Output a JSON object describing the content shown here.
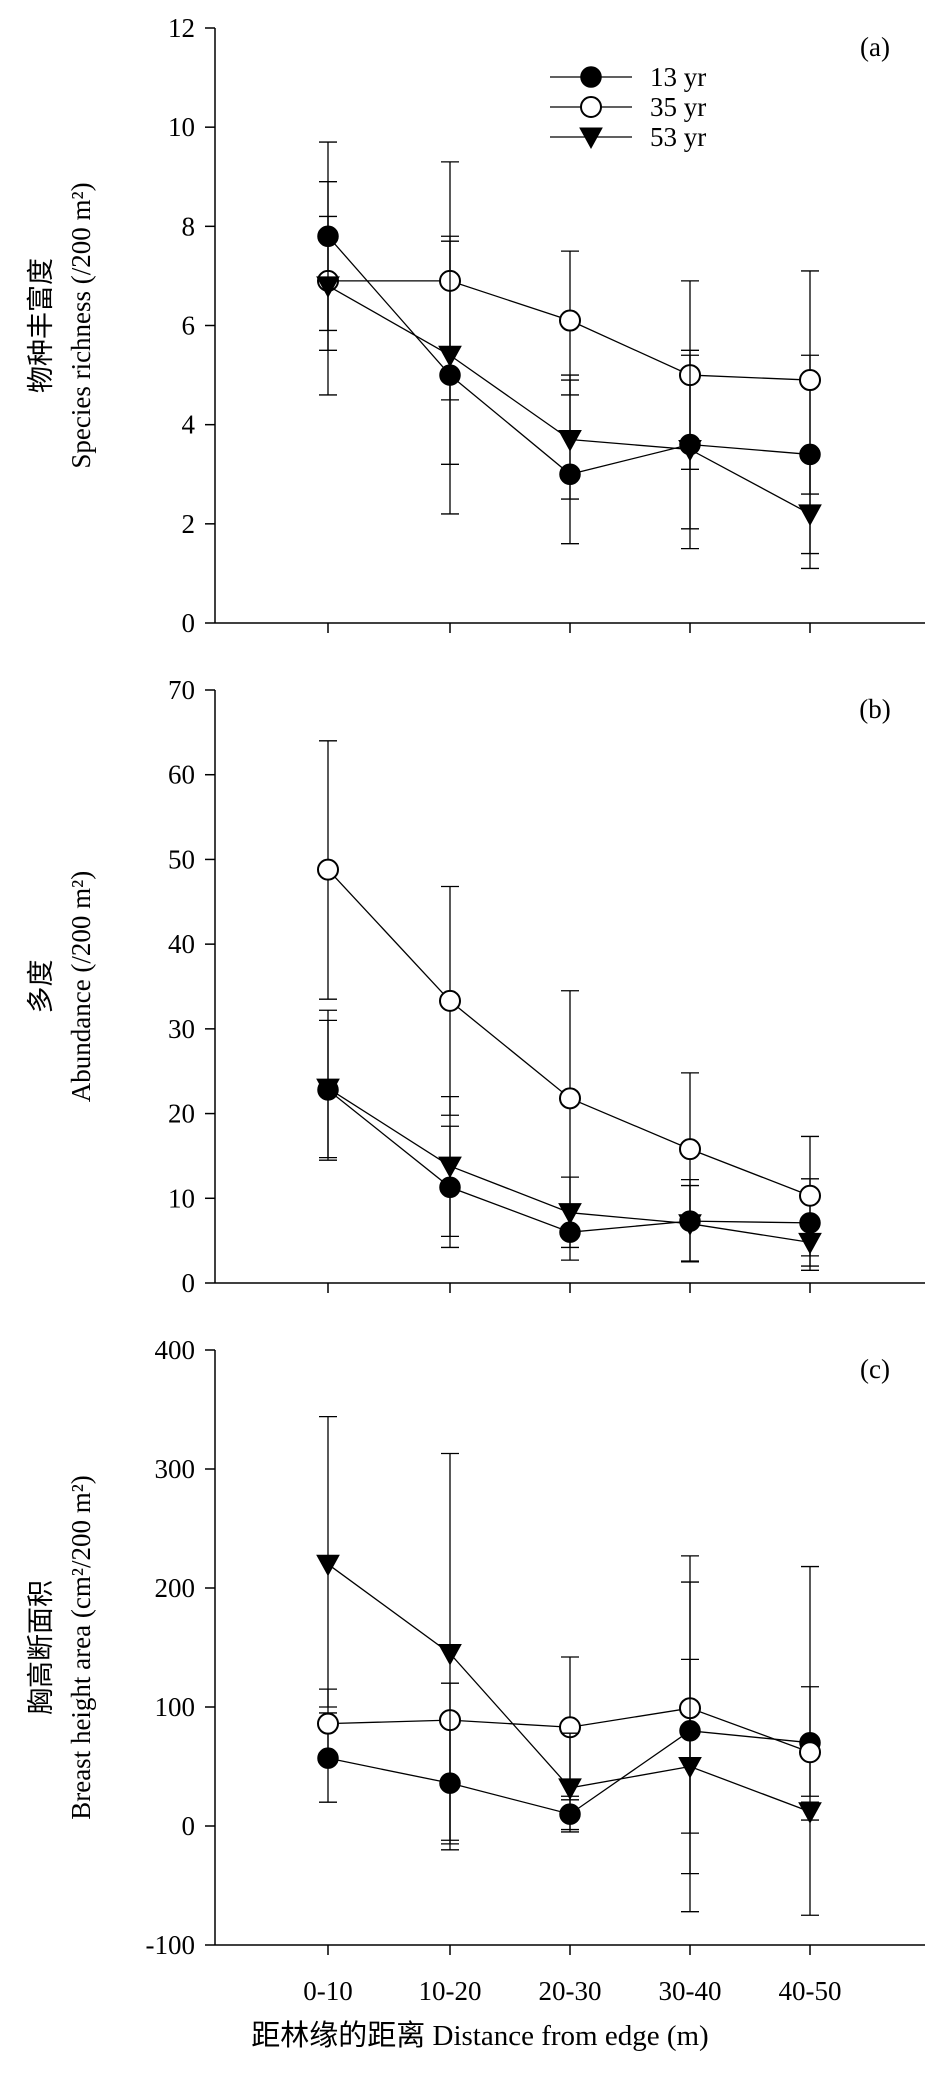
{
  "chart_data": {
    "type": "line",
    "categories": [
      "0-10",
      "10-20",
      "20-30",
      "30-40",
      "40-50"
    ],
    "xlabel": "距林缘的距离  Distance from edge (m)",
    "legend": {
      "placement": "top-center",
      "entries": [
        {
          "label": "13 yr",
          "marker": "filled-circle"
        },
        {
          "label": "35 yr",
          "marker": "open-circle"
        },
        {
          "label": "53 yr",
          "marker": "filled-triangle-down"
        }
      ]
    },
    "panels": [
      {
        "panel_label": "(a)",
        "ylabel_cn": "物种丰富度",
        "ylabel": "Species richness (/200 m²)",
        "ylim": [
          0,
          12
        ],
        "yticks": [
          0,
          2,
          4,
          6,
          8,
          10,
          12
        ],
        "series": [
          {
            "name": "13 yr",
            "values": [
              7.8,
              5.0,
              3.0,
              3.6,
              3.4
            ],
            "err_upper": [
              9.7,
              7.7,
              4.9,
              5.4,
              5.4
            ],
            "err_lower": [
              5.9,
              2.2,
              1.6,
              1.9,
              1.4
            ]
          },
          {
            "name": "35 yr",
            "values": [
              6.9,
              6.9,
              6.1,
              5.0,
              4.9
            ],
            "err_upper": [
              8.9,
              9.3,
              7.5,
              6.9,
              7.1
            ],
            "err_lower": [
              4.6,
              4.5,
              4.6,
              3.1,
              2.6
            ]
          },
          {
            "name": "53 yr",
            "values": [
              6.8,
              5.4,
              3.7,
              3.5,
              2.2
            ],
            "err_upper": [
              8.2,
              7.8,
              5.0,
              5.5,
              3.3
            ],
            "err_lower": [
              5.5,
              3.2,
              2.5,
              1.5,
              1.1
            ]
          }
        ]
      },
      {
        "panel_label": "(b)",
        "ylabel_cn": "多度",
        "ylabel": "Abundance (/200 m²)",
        "ylim": [
          0,
          70
        ],
        "yticks": [
          0,
          10,
          20,
          30,
          40,
          50,
          60,
          70
        ],
        "series": [
          {
            "name": "13 yr",
            "values": [
              22.8,
              11.3,
              6.0,
              7.3,
              7.1
            ],
            "err_upper": [
              31.0,
              18.5,
              9.2,
              12.2,
              12.3
            ],
            "err_lower": [
              14.5,
              4.2,
              2.7,
              2.5,
              2.0
            ]
          },
          {
            "name": "35 yr",
            "values": [
              48.8,
              33.3,
              21.8,
              15.8,
              10.3
            ],
            "err_upper": [
              64.0,
              46.8,
              34.5,
              24.8,
              17.3
            ],
            "err_lower": [
              33.5,
              19.8,
              9.1,
              6.8,
              3.2
            ]
          },
          {
            "name": "53 yr",
            "values": [
              23.0,
              13.8,
              8.3,
              7.0,
              4.8
            ],
            "err_upper": [
              32.2,
              22.0,
              12.5,
              11.5,
              7.0
            ],
            "err_lower": [
              14.8,
              5.5,
              4.2,
              2.6,
              1.5
            ]
          }
        ]
      },
      {
        "panel_label": "(c)",
        "ylabel_cn": "胸高断面积",
        "ylabel": "Breast height area (cm²/200 m²)",
        "ylim": [
          -100,
          400
        ],
        "yticks": [
          -100,
          0,
          100,
          200,
          300,
          400
        ],
        "series": [
          {
            "name": "13 yr",
            "values": [
              57,
              36,
              10,
              80,
              70
            ],
            "err_upper": [
              95,
              88,
              25,
              205,
              117
            ],
            "err_lower": [
              20,
              -15,
              -5,
              -40,
              25
            ]
          },
          {
            "name": "35 yr",
            "values": [
              86,
              89,
              83,
              99,
              62
            ],
            "err_upper": [
              115,
              120,
              142,
              227,
              218
            ],
            "err_lower": [
              56,
              -12,
              22,
              -6,
              -75
            ]
          },
          {
            "name": "53 yr",
            "values": [
              220,
              145,
              32,
              50,
              12
            ],
            "err_upper": [
              344,
              313,
              78,
              140,
              20
            ],
            "err_lower": [
              100,
              -20,
              -3,
              -72,
              5
            ]
          }
        ]
      }
    ]
  }
}
